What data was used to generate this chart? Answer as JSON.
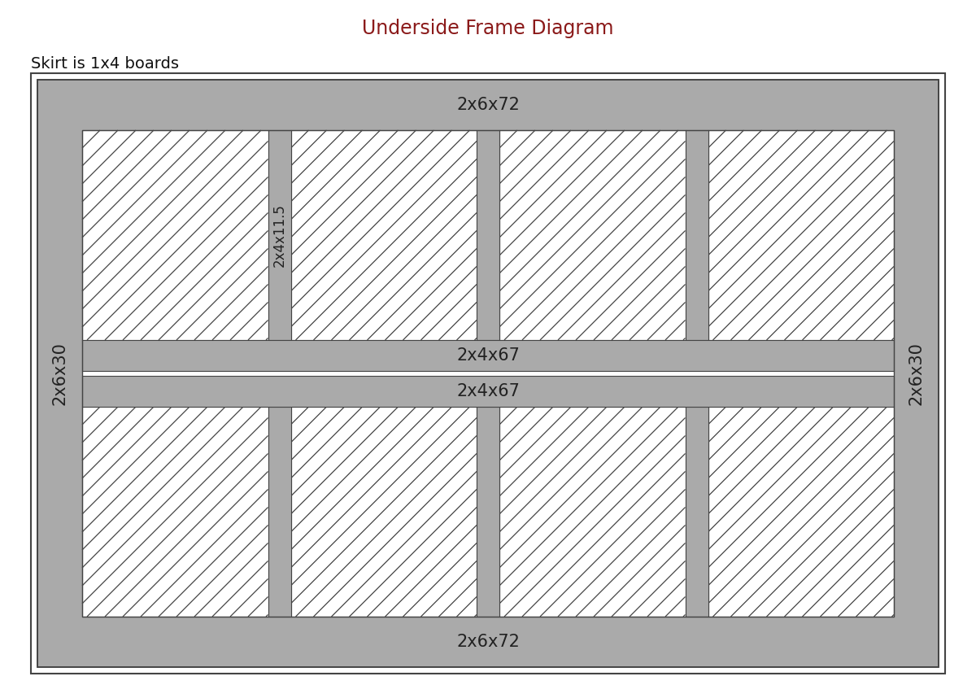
{
  "title": "Underside Frame Diagram",
  "title_color": "#8B1A1A",
  "subtitle": "Skirt is 1x4 boards",
  "bg_color": "#ffffff",
  "board_color": "#AAAAAA",
  "board_edge_color": "#444444",
  "fig_width": 12.0,
  "fig_height": 8.58,
  "top_beam_label": "2x6x72",
  "bottom_beam_label": "2x6x72",
  "left_beam_label": "2x6x30",
  "right_beam_label": "2x6x30",
  "middle_beam1_label": "2x4x67",
  "middle_beam2_label": "2x4x67",
  "short_beam_label": "2x4x11.5"
}
